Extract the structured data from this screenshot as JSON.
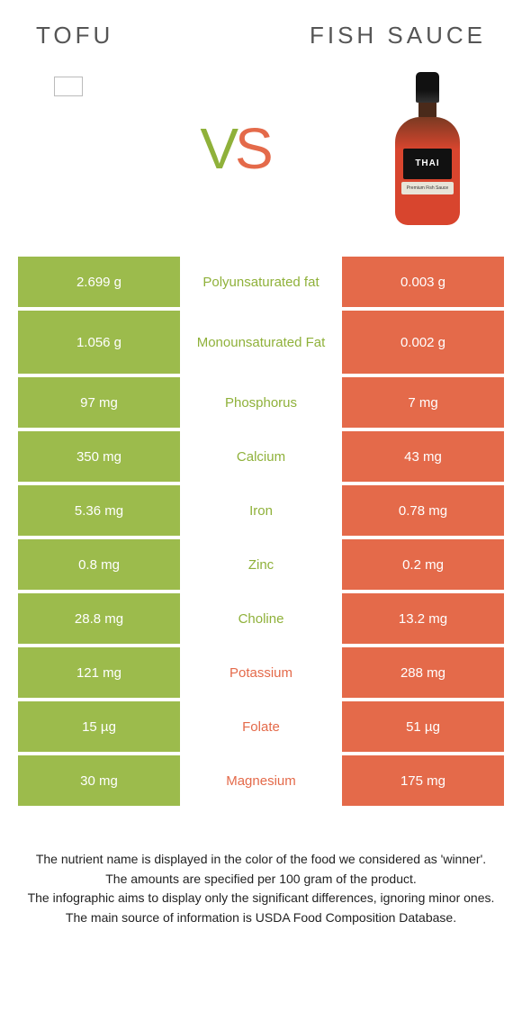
{
  "header": {
    "left_title": "TOFU",
    "right_title": "FISH SAUCE"
  },
  "vs": {
    "v": "V",
    "s": "S"
  },
  "bottle": {
    "brand": "THAI",
    "sub": "Premium Fish Sauce"
  },
  "colors": {
    "left_bg": "#9cbb4c",
    "right_bg": "#e46a4a",
    "left_text": "#8fb13a",
    "right_text": "#e46a4a"
  },
  "rows": [
    {
      "left": "2.699 g",
      "label": "Polyunsaturated fat",
      "right": "0.003 g",
      "winner": "left",
      "tall": false
    },
    {
      "left": "1.056 g",
      "label": "Monounsaturated Fat",
      "right": "0.002 g",
      "winner": "left",
      "tall": true
    },
    {
      "left": "97 mg",
      "label": "Phosphorus",
      "right": "7 mg",
      "winner": "left",
      "tall": false
    },
    {
      "left": "350 mg",
      "label": "Calcium",
      "right": "43 mg",
      "winner": "left",
      "tall": false
    },
    {
      "left": "5.36 mg",
      "label": "Iron",
      "right": "0.78 mg",
      "winner": "left",
      "tall": false
    },
    {
      "left": "0.8 mg",
      "label": "Zinc",
      "right": "0.2 mg",
      "winner": "left",
      "tall": false
    },
    {
      "left": "28.8 mg",
      "label": "Choline",
      "right": "13.2 mg",
      "winner": "left",
      "tall": false
    },
    {
      "left": "121 mg",
      "label": "Potassium",
      "right": "288 mg",
      "winner": "right",
      "tall": false
    },
    {
      "left": "15 µg",
      "label": "Folate",
      "right": "51 µg",
      "winner": "right",
      "tall": false
    },
    {
      "left": "30 mg",
      "label": "Magnesium",
      "right": "175 mg",
      "winner": "right",
      "tall": false
    }
  ],
  "footnotes": [
    "The nutrient name is displayed in the color of the food we considered as 'winner'.",
    "The amounts are specified per 100 gram of the product.",
    "The infographic aims to display only the significant differences, ignoring minor ones.",
    "The main source of information is USDA Food Composition Database."
  ]
}
